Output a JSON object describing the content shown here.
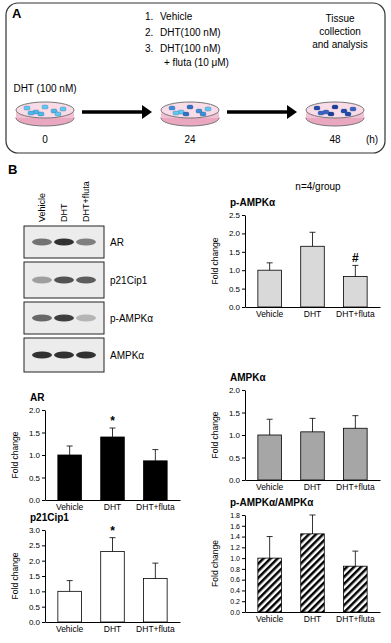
{
  "panel_labels": [
    "A",
    "B"
  ],
  "diagram": {
    "start_label": "DHT (100 nM)",
    "treatments": [
      {
        "number": "1.",
        "label": "Vehicle"
      },
      {
        "number": "2.",
        "label": "DHT(100 nM)"
      },
      {
        "number": "3.",
        "label": "DHT(100 nM)",
        "sub": "+ fluta (10 μM)"
      }
    ],
    "end_label": [
      "Tissue",
      "collection",
      "and analysis"
    ],
    "timeline": [
      "0",
      "24",
      "48"
    ],
    "unit": "(h)"
  },
  "blot": {
    "lanes": [
      "Vehicle",
      "DHT",
      "DHT+fluta"
    ],
    "bands": [
      "AR",
      "p21Cip1",
      "p-AMPKα",
      "AMPKα"
    ]
  },
  "n_label": "n=4/group",
  "chart_data": [
    {
      "type": "bar",
      "title": "p-AMPKα",
      "y_label": "Fold change",
      "categories": [
        "Vehicle",
        "DHT",
        "DHT+fluta"
      ],
      "values": [
        1.0,
        1.65,
        0.83
      ],
      "errors": [
        0.2,
        0.38,
        0.3
      ],
      "color": "#d9d9d9",
      "ylim": [
        0,
        2.5
      ],
      "yticks": [
        {
          "value": 0,
          "label": "0.0"
        },
        0.5,
        {
          "value": 1,
          "label": "1.0"
        },
        1.5,
        {
          "value": 2,
          "label": "2.0"
        },
        2.5
      ],
      "annotations": [
        {
          "text": "#",
          "category": "DHT+fluta"
        }
      ]
    },
    {
      "type": "bar",
      "title": "AR",
      "y_label": "Fold change",
      "categories": [
        "Vehicle",
        "DHT",
        "DHT+fluta"
      ],
      "values": [
        1.0,
        1.4,
        0.87
      ],
      "errors": [
        0.2,
        0.2,
        0.25
      ],
      "color": "#000000",
      "ylim": [
        0,
        2.0
      ],
      "yticks": [
        {
          "value": 0,
          "label": "0.0"
        },
        0.5,
        {
          "value": 1,
          "label": "1.0"
        },
        1.5,
        {
          "value": 2,
          "label": "2.0"
        }
      ],
      "annotations": [
        {
          "text": "*",
          "category": "DHT"
        }
      ]
    },
    {
      "type": "bar",
      "title": "AMPKα",
      "y_label": "Fold change",
      "categories": [
        "Vehicle",
        "DHT",
        "DHT+fluta"
      ],
      "values": [
        1.0,
        1.07,
        1.15
      ],
      "errors": [
        0.35,
        0.3,
        0.28
      ],
      "color": "#a6a6a6",
      "ylim": [
        0,
        2.0
      ],
      "yticks": [
        {
          "value": 0,
          "label": "0.0"
        },
        0.5,
        {
          "value": 1,
          "label": "1.0"
        },
        1.5,
        {
          "value": 2,
          "label": "2.0"
        }
      ]
    },
    {
      "type": "bar",
      "title": "p21Cip1",
      "y_label": "Fold change",
      "categories": [
        "Vehicle",
        "DHT",
        "DHT+fluta"
      ],
      "values": [
        1.0,
        2.3,
        1.42
      ],
      "errors": [
        0.35,
        0.45,
        0.5
      ],
      "color": "#ffffff",
      "ylim": [
        0,
        3.0
      ],
      "yticks": [
        {
          "value": 0,
          "label": "0.0"
        },
        0.5,
        {
          "value": 1,
          "label": "1.0"
        },
        1.5,
        {
          "value": 2,
          "label": "2.0"
        },
        2.5,
        {
          "value": 3,
          "label": "3.0"
        }
      ],
      "annotations": [
        {
          "text": "*",
          "category": "DHT"
        }
      ]
    },
    {
      "type": "bar",
      "title": "p-AMPKα/AMPKα",
      "y_label": "Fold change",
      "categories": [
        "Vehicle",
        "DHT",
        "DHT+fluta"
      ],
      "values": [
        1.0,
        1.45,
        0.85
      ],
      "errors": [
        0.4,
        0.35,
        0.28
      ],
      "color": "#000000",
      "ylim": [
        0,
        1.8
      ],
      "yticks": [
        {
          "value": 0,
          "label": "0.0"
        },
        0.2,
        0.4,
        0.6,
        0.8,
        {
          "value": 1,
          "label": "1.0"
        },
        1.2,
        1.4,
        1.6,
        1.8
      ]
    }
  ]
}
